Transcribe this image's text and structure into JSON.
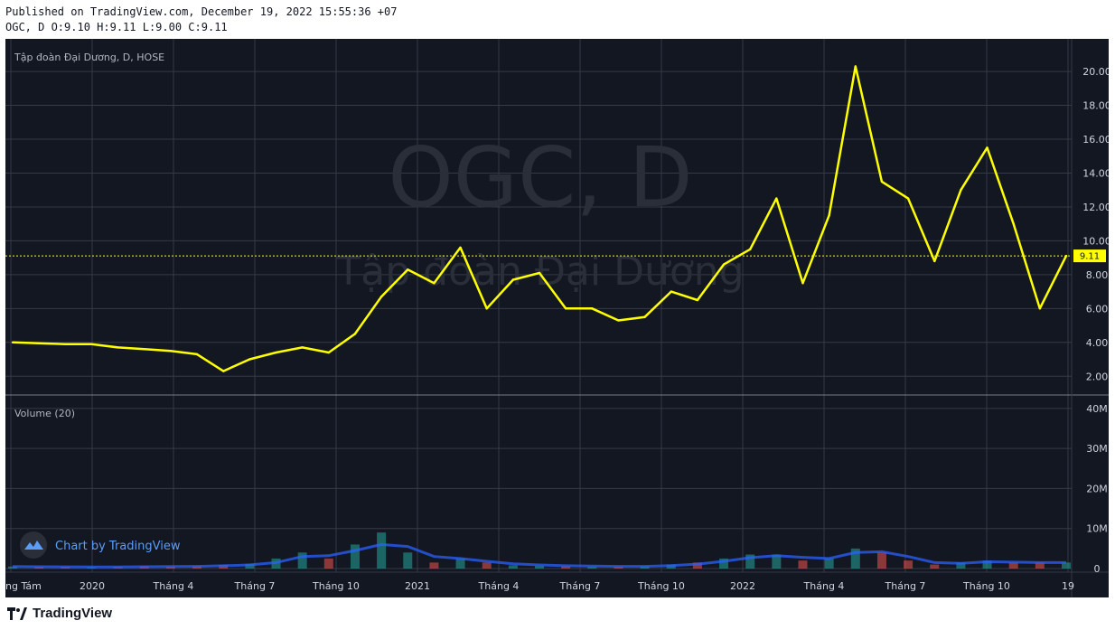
{
  "header": {
    "published": "Published on TradingView.com, December 19, 2022 15:55:36 +07",
    "ohlc": "OGC, D O:9.10 H:9.11 L:9.00 C:9.11"
  },
  "pane": {
    "symbol_title": "Tập đoàn Đại Dương, D, HOSE",
    "watermark_main": "OGC, D",
    "watermark_sub": "Tập đoàn Đại Dương",
    "volume_label": "Volume (20)",
    "last_price_label": "9.11"
  },
  "branding": {
    "chart_by": "Chart by TradingView",
    "footer": "TradingView"
  },
  "colors": {
    "background": "#131722",
    "price_line": "#ffff00",
    "grid": "#363a45",
    "axis_text": "#d1d4dc",
    "volume_up": "#26a69a",
    "volume_down": "#ef5350",
    "volume_ma": "#2962ff",
    "last_price_line": "#ffff00"
  },
  "chart_data": [
    {
      "type": "line",
      "name": "price",
      "title": "Tập đoàn Đại Dương, D, HOSE",
      "ylim": [
        1.0,
        21.5
      ],
      "y_ticks": [
        "2.00",
        "4.00",
        "6.00",
        "8.00",
        "10.00",
        "12.00",
        "14.00",
        "16.00",
        "18.00",
        "20.00"
      ],
      "x_ticks": [
        "ng Tám",
        "2020",
        "Tháng 4",
        "Tháng 7",
        "Tháng 10",
        "2021",
        "Tháng 4",
        "Tháng 7",
        "Tháng 10",
        "2022",
        "Tháng 4",
        "Tháng 7",
        "Tháng 10",
        "19"
      ],
      "x": [
        "2019-08",
        "2019-09",
        "2019-10",
        "2019-11",
        "2019-12",
        "2020-01",
        "2020-02",
        "2020-03",
        "2020-04",
        "2020-05",
        "2020-06",
        "2020-07",
        "2020-08",
        "2020-09",
        "2020-10",
        "2020-11",
        "2020-12",
        "2021-01",
        "2021-02",
        "2021-03",
        "2021-04",
        "2021-05",
        "2021-06",
        "2021-07",
        "2021-08",
        "2021-09",
        "2021-10",
        "2021-11",
        "2021-12",
        "2022-01",
        "2022-02",
        "2022-03",
        "2022-04",
        "2022-05",
        "2022-06",
        "2022-07",
        "2022-08",
        "2022-09",
        "2022-10",
        "2022-11",
        "2022-12-19"
      ],
      "values": [
        4.0,
        3.95,
        3.9,
        3.9,
        3.7,
        3.6,
        3.5,
        3.3,
        2.3,
        3.0,
        3.4,
        3.7,
        3.4,
        4.5,
        6.7,
        8.3,
        7.5,
        9.6,
        6.0,
        7.7,
        8.1,
        6.0,
        6.0,
        5.3,
        5.5,
        7.0,
        6.5,
        8.6,
        9.5,
        12.5,
        7.5,
        11.5,
        20.3,
        13.5,
        12.5,
        8.8,
        13.0,
        15.5,
        11.0,
        6.0,
        9.11
      ],
      "last_value": 9.11
    },
    {
      "type": "bar",
      "name": "volume",
      "title": "Volume (20)",
      "ylim": [
        0,
        42000000
      ],
      "y_ticks": [
        "0",
        "10M",
        "20M",
        "30M",
        "40M"
      ],
      "x": [
        "2019-08",
        "2019-09",
        "2019-10",
        "2019-11",
        "2019-12",
        "2020-01",
        "2020-02",
        "2020-03",
        "2020-04",
        "2020-05",
        "2020-06",
        "2020-07",
        "2020-08",
        "2020-09",
        "2020-10",
        "2020-11",
        "2020-12",
        "2021-01",
        "2021-02",
        "2021-03",
        "2021-04",
        "2021-05",
        "2021-06",
        "2021-07",
        "2021-08",
        "2021-09",
        "2021-10",
        "2021-11",
        "2021-12",
        "2022-01",
        "2022-02",
        "2022-03",
        "2022-04",
        "2022-05",
        "2022-06",
        "2022-07",
        "2022-08",
        "2022-09",
        "2022-10",
        "2022-11",
        "2022-12-19"
      ],
      "values": [
        500000,
        400000,
        400000,
        300000,
        400000,
        600000,
        500000,
        600000,
        900000,
        1200000,
        2500000,
        4000000,
        2500000,
        6000000,
        9000000,
        4000000,
        1500000,
        2500000,
        1500000,
        800000,
        700000,
        600000,
        500000,
        500000,
        600000,
        1000000,
        1500000,
        2500000,
        3500000,
        3500000,
        2000000,
        2500000,
        5000000,
        4000000,
        2000000,
        1000000,
        1500000,
        2000000,
        1500000,
        1500000,
        1500000
      ],
      "ma_values": [
        500000,
        450000,
        420000,
        380000,
        380000,
        450000,
        500000,
        550000,
        700000,
        900000,
        1500000,
        3000000,
        3200000,
        4500000,
        6000000,
        5500000,
        3000000,
        2500000,
        1800000,
        1200000,
        900000,
        700000,
        600000,
        550000,
        550000,
        750000,
        1100000,
        1800000,
        2700000,
        3200000,
        2800000,
        2500000,
        4000000,
        4200000,
        3000000,
        1500000,
        1300000,
        1700000,
        1600000,
        1500000,
        1500000
      ]
    }
  ]
}
